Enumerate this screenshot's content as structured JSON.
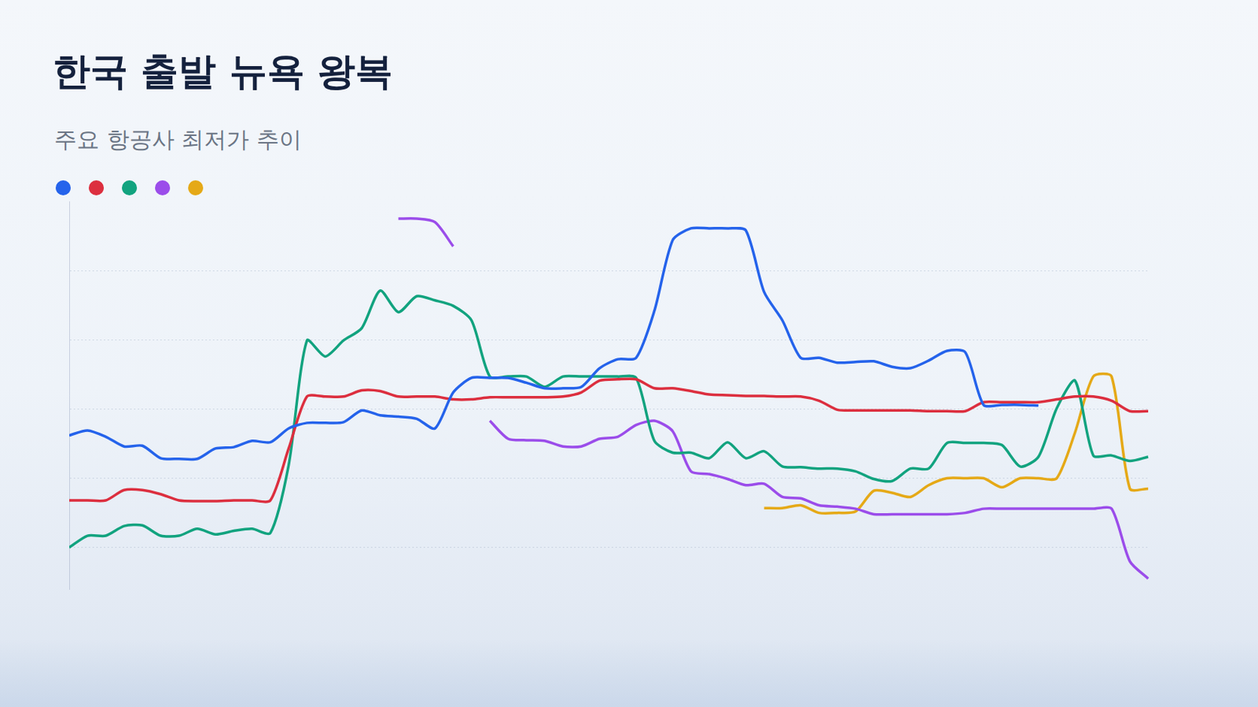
{
  "chart_data": {
    "type": "line",
    "title": "한국 출발 뉴욕 왕복",
    "subtitle": "주요 항공사 최저가 추이",
    "categories": [
      null,
      null,
      null,
      null,
      null,
      null,
      null,
      null,
      null,
      null,
      null,
      null,
      null,
      null,
      null,
      null,
      null,
      null,
      null,
      null,
      null,
      null,
      null,
      null,
      null,
      null,
      null,
      null,
      null,
      null,
      null,
      null,
      null,
      null,
      null,
      null,
      null,
      null,
      null,
      null,
      null,
      null,
      null,
      null,
      null,
      null,
      null,
      null,
      null,
      null,
      null,
      null,
      null,
      null,
      null,
      null,
      null,
      null,
      null,
      null
    ],
    "series": [
      {
        "color": "#2563eb",
        "values": [
          2.62,
          2.69,
          2.6,
          2.46,
          2.47,
          2.29,
          2.28,
          2.28,
          2.43,
          2.45,
          2.54,
          2.52,
          2.72,
          2.8,
          2.8,
          2.81,
          2.98,
          2.91,
          2.89,
          2.86,
          2.72,
          3.24,
          3.45,
          3.45,
          3.45,
          3.38,
          3.3,
          3.3,
          3.32,
          3.59,
          3.72,
          3.74,
          4.42,
          5.44,
          5.61,
          5.61,
          5.61,
          5.58,
          4.69,
          4.28,
          3.74,
          3.74,
          3.67,
          3.68,
          3.69,
          3.61,
          3.59,
          3.7,
          3.84,
          3.82,
          3.06,
          3.06,
          3.06,
          3.05,
          null,
          null,
          null,
          null,
          null,
          null
        ]
      },
      {
        "color": "#dc2f3f",
        "values": [
          1.68,
          1.68,
          1.68,
          1.83,
          1.83,
          1.77,
          1.68,
          1.67,
          1.67,
          1.68,
          1.68,
          1.68,
          2.43,
          3.18,
          3.18,
          3.18,
          3.27,
          3.26,
          3.18,
          3.18,
          3.18,
          3.14,
          3.14,
          3.17,
          3.17,
          3.17,
          3.17,
          3.18,
          3.24,
          3.41,
          3.43,
          3.43,
          3.3,
          3.3,
          3.26,
          3.21,
          3.2,
          3.19,
          3.19,
          3.18,
          3.18,
          3.12,
          2.99,
          2.98,
          2.98,
          2.98,
          2.98,
          2.97,
          2.97,
          2.97,
          3.1,
          3.1,
          3.1,
          3.1,
          3.14,
          3.18,
          3.18,
          3.12,
          2.97,
          2.97
        ]
      },
      {
        "color": "#12a37f",
        "values": [
          1.0,
          1.17,
          1.17,
          1.31,
          1.32,
          1.17,
          1.17,
          1.27,
          1.19,
          1.24,
          1.27,
          1.21,
          2.19,
          3.99,
          3.76,
          3.99,
          4.17,
          4.71,
          4.4,
          4.63,
          4.57,
          4.49,
          4.28,
          3.47,
          3.47,
          3.47,
          3.32,
          3.47,
          3.47,
          3.47,
          3.47,
          3.45,
          2.54,
          2.37,
          2.37,
          2.29,
          2.52,
          2.29,
          2.39,
          2.17,
          2.16,
          2.14,
          2.14,
          2.1,
          1.99,
          1.96,
          2.14,
          2.14,
          2.51,
          2.51,
          2.51,
          2.48,
          2.17,
          2.31,
          3.01,
          3.41,
          2.33,
          2.33,
          2.25,
          2.31
        ]
      },
      {
        "color": "#9b4dea",
        "values": [
          null,
          null,
          null,
          null,
          null,
          null,
          null,
          null,
          null,
          null,
          null,
          null,
          null,
          null,
          null,
          null,
          null,
          null,
          5.75,
          5.75,
          5.7,
          5.35,
          null,
          2.83,
          2.57,
          2.55,
          2.54,
          2.46,
          2.46,
          2.57,
          2.6,
          2.77,
          2.83,
          2.68,
          2.1,
          2.06,
          1.99,
          1.9,
          1.92,
          1.73,
          1.71,
          1.61,
          1.59,
          1.56,
          1.48,
          1.48,
          1.48,
          1.48,
          1.48,
          1.5,
          1.56,
          1.56,
          1.56,
          1.56,
          1.56,
          1.56,
          1.56,
          1.56,
          0.8,
          0.55
        ]
      },
      {
        "color": "#e5a917",
        "values": [
          null,
          null,
          null,
          null,
          null,
          null,
          null,
          null,
          null,
          null,
          null,
          null,
          null,
          null,
          null,
          null,
          null,
          null,
          null,
          null,
          null,
          null,
          null,
          null,
          null,
          null,
          null,
          null,
          null,
          null,
          null,
          null,
          null,
          null,
          null,
          null,
          null,
          null,
          1.57,
          1.57,
          1.61,
          1.5,
          1.5,
          1.52,
          1.82,
          1.79,
          1.73,
          1.9,
          2.0,
          2.0,
          2.0,
          1.87,
          2.0,
          2.0,
          2.0,
          2.66,
          3.47,
          3.47,
          1.85,
          1.85
        ]
      }
    ],
    "ylim": [
      0.4,
      6
    ],
    "yticks": [
      1,
      2,
      3,
      4,
      5
    ],
    "grid": true,
    "tick_labels": false
  }
}
